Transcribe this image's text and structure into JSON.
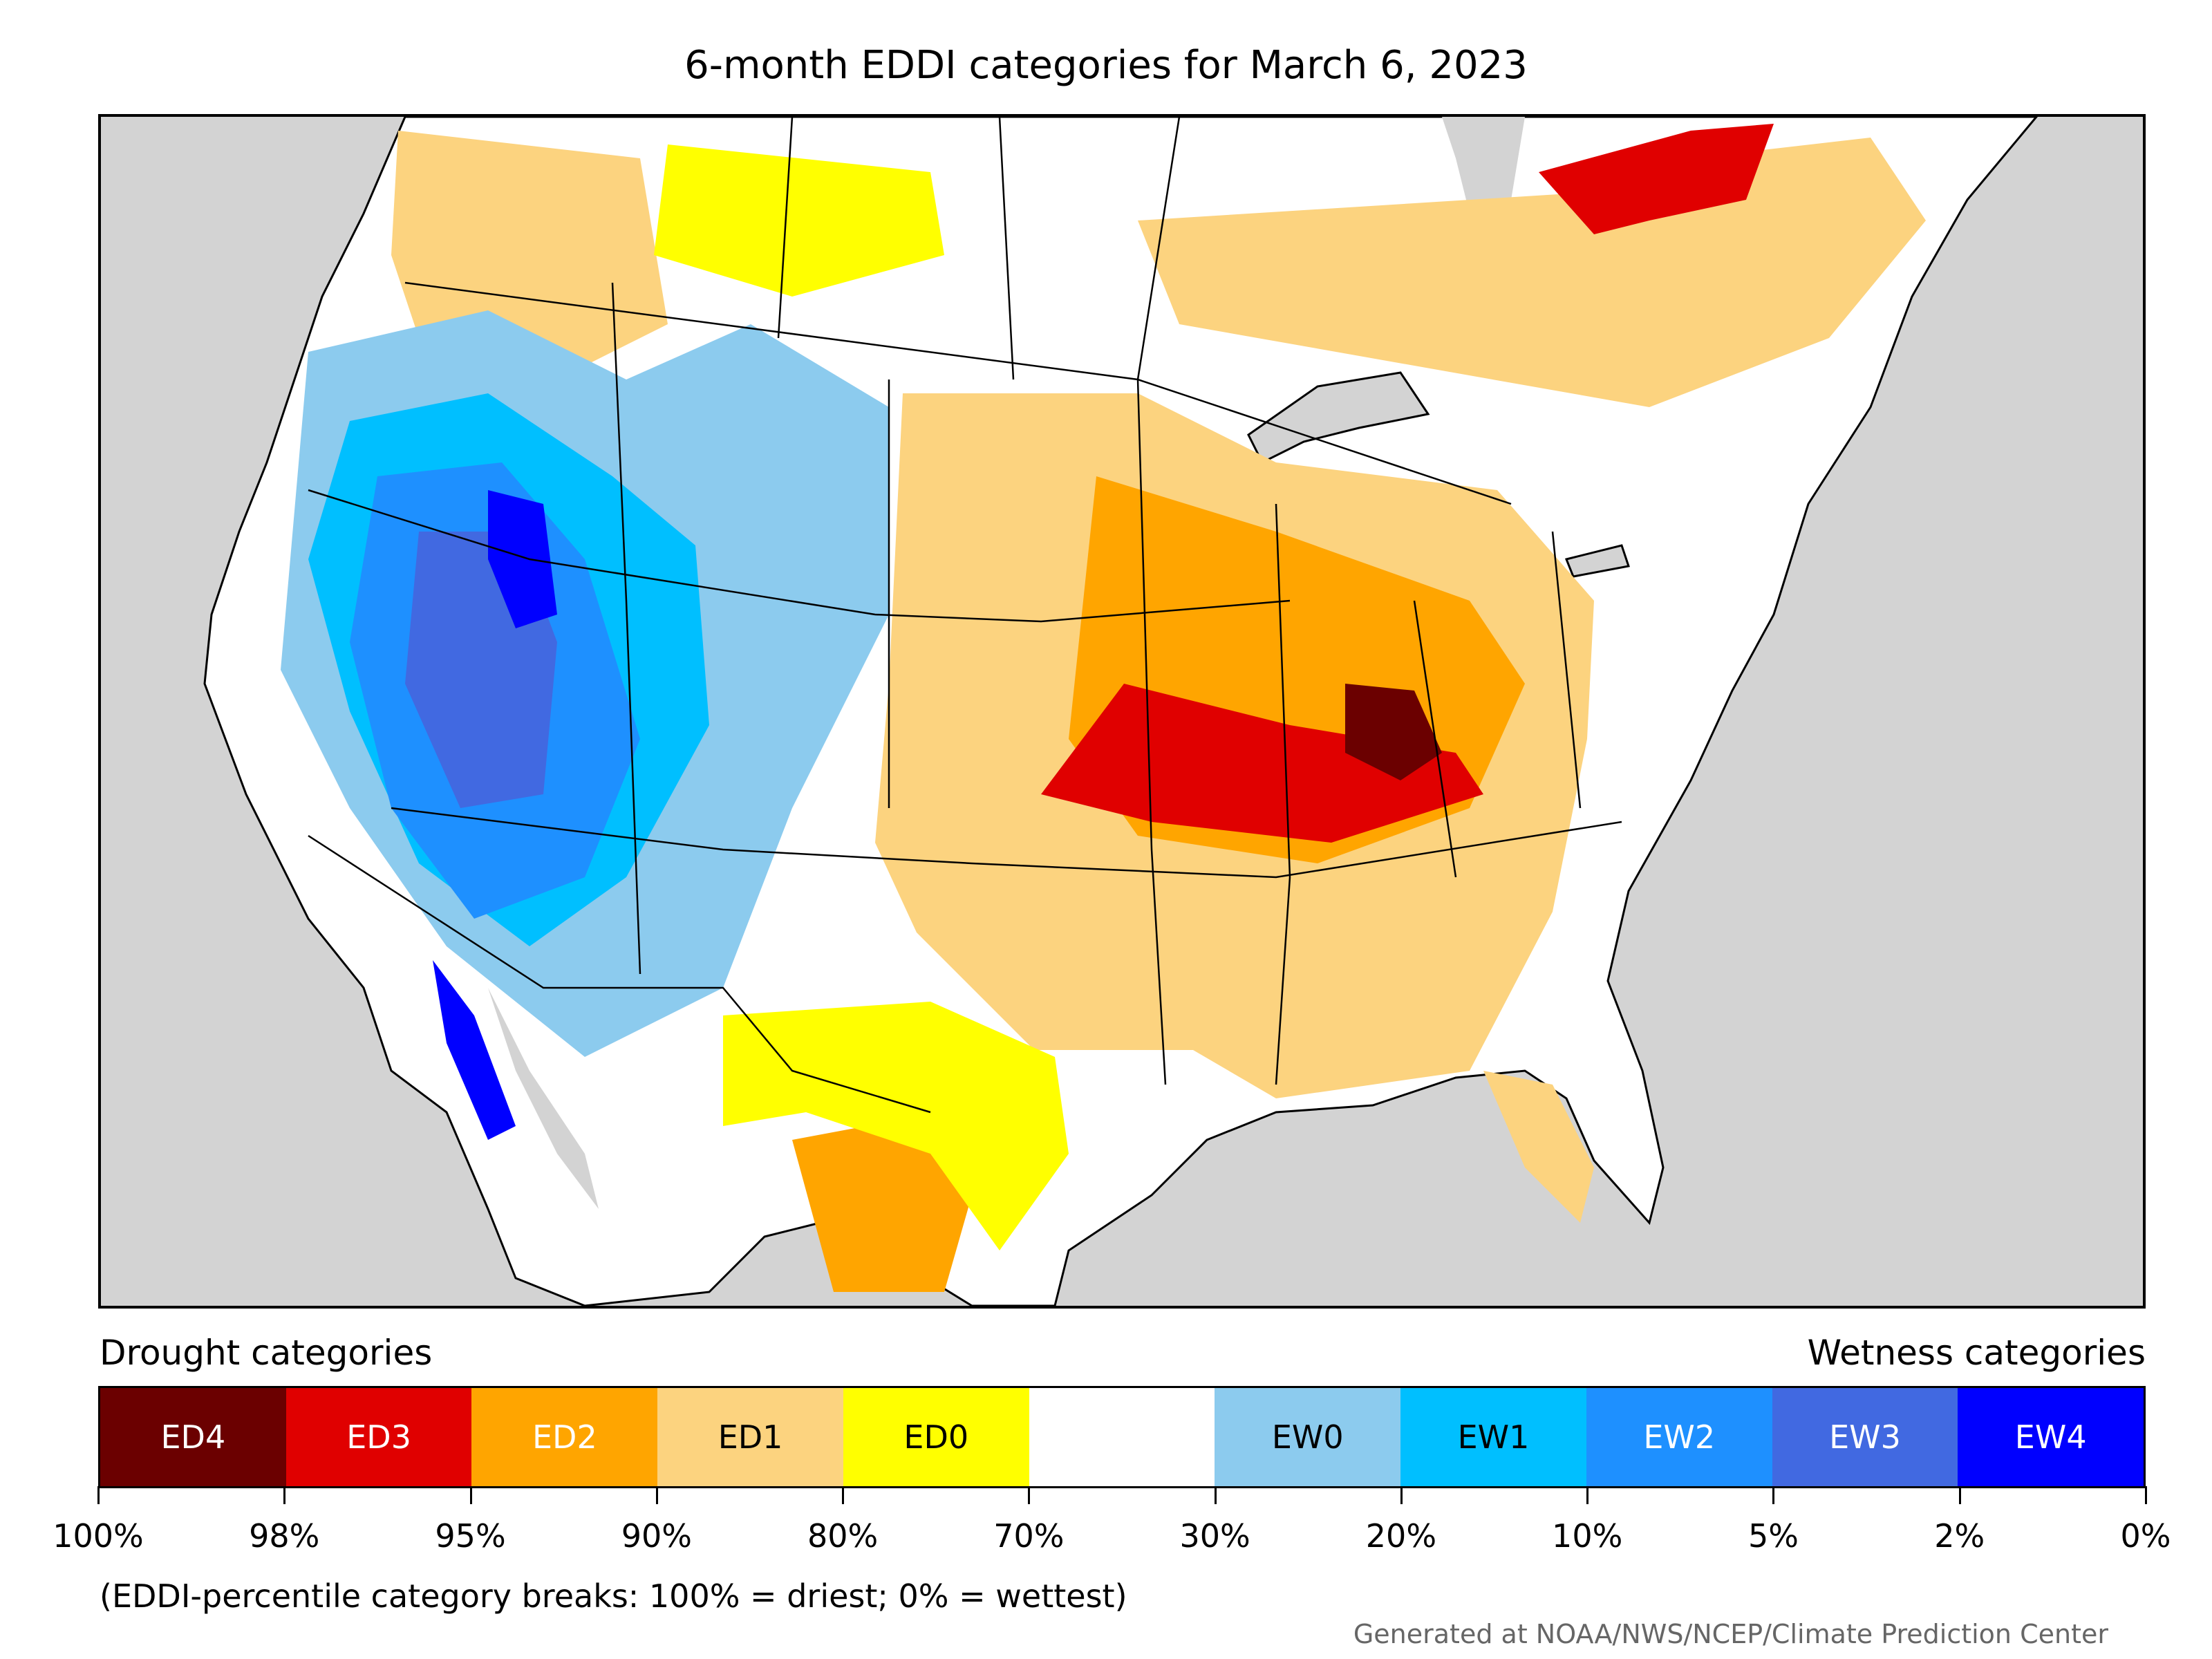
{
  "title": "6-month EDDI categories for March 6, 2023",
  "legend": {
    "left_heading": "Drought categories",
    "right_heading": "Wetness categories",
    "categories": [
      {
        "label": "ED4",
        "color": "#6b0000",
        "text_color": "#ffffff"
      },
      {
        "label": "ED3",
        "color": "#e00000",
        "text_color": "#ffffff"
      },
      {
        "label": "ED2",
        "color": "#ffa500",
        "text_color": "#ffffff"
      },
      {
        "label": "ED1",
        "color": "#fcd37f",
        "text_color": "#000000"
      },
      {
        "label": "ED0",
        "color": "#ffff00",
        "text_color": "#000000"
      },
      {
        "label": "",
        "color": "#ffffff",
        "text_color": "#000000"
      },
      {
        "label": "EW0",
        "color": "#8ccbee",
        "text_color": "#000000"
      },
      {
        "label": "EW1",
        "color": "#00bfff",
        "text_color": "#000000"
      },
      {
        "label": "EW2",
        "color": "#1e90ff",
        "text_color": "#ffffff"
      },
      {
        "label": "EW3",
        "color": "#4169e1",
        "text_color": "#ffffff"
      },
      {
        "label": "EW4",
        "color": "#0000ff",
        "text_color": "#ffffff"
      }
    ],
    "breaks": [
      "100%",
      "98%",
      "95%",
      "90%",
      "80%",
      "70%",
      "30%",
      "20%",
      "10%",
      "5%",
      "2%",
      "0%"
    ]
  },
  "note": "(EDDI-percentile category breaks: 100% = driest; 0% = wettest)",
  "credit": "Generated at NOAA/NWS/NCEP/Climate Prediction Center",
  "colors": {
    "ocean": "#d3d3d3",
    "land": "#ffffff",
    "border": "#000000"
  }
}
